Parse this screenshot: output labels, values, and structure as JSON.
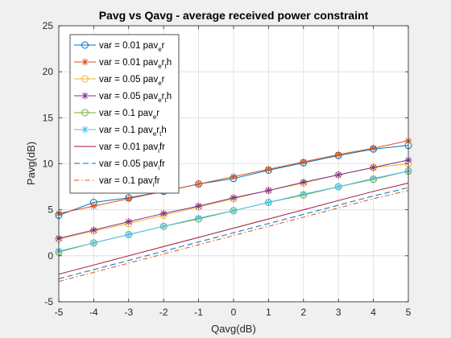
{
  "chart_data": {
    "type": "line",
    "title": "Pavg vs Qavg - average received power constraint",
    "xlabel": "Qavg(dB)",
    "ylabel": "Pavg(dB)",
    "xlim": [
      -5,
      5
    ],
    "ylim": [
      -5,
      25
    ],
    "xticks": [
      -5,
      -4,
      -3,
      -2,
      -1,
      0,
      1,
      2,
      3,
      4,
      5
    ],
    "yticks": [
      -5,
      0,
      5,
      10,
      15,
      20,
      25
    ],
    "grid": true,
    "legend_position": "top-left",
    "x": [
      -5,
      -4,
      -3,
      -2,
      -1,
      0,
      1,
      2,
      3,
      4,
      5
    ],
    "series": [
      {
        "legend": [
          {
            "t": "var = 0.01 pav"
          },
          {
            "t": "e",
            "sub": true
          },
          {
            "t": "r"
          }
        ],
        "color": "#0072BD",
        "line": "solid",
        "marker": "circle",
        "values": [
          4.4,
          5.8,
          6.3,
          7.0,
          7.8,
          8.4,
          9.3,
          10.1,
          10.9,
          11.6,
          12.0
        ]
      },
      {
        "legend": [
          {
            "t": "var = 0.01 pav"
          },
          {
            "t": "e",
            "sub": true
          },
          {
            "t": "r"
          },
          {
            "t": "t",
            "sub": true
          },
          {
            "t": "h"
          }
        ],
        "color": "#D95319",
        "line": "solid",
        "marker": "asterisk",
        "values": [
          4.6,
          5.4,
          6.2,
          7.0,
          7.8,
          8.6,
          9.4,
          10.2,
          11.0,
          11.7,
          12.5
        ]
      },
      {
        "legend": [
          {
            "t": "var = 0.05 pav"
          },
          {
            "t": "e",
            "sub": true
          },
          {
            "t": "r"
          }
        ],
        "color": "#EDB120",
        "line": "solid",
        "marker": "circle",
        "values": [
          1.8,
          2.7,
          3.5,
          4.4,
          5.3,
          6.2,
          7.1,
          7.9,
          8.8,
          9.6,
          10.0
        ]
      },
      {
        "legend": [
          {
            "t": "var = 0.05 pav"
          },
          {
            "t": "e",
            "sub": true
          },
          {
            "t": "r"
          },
          {
            "t": "t",
            "sub": true
          },
          {
            "t": "h"
          }
        ],
        "color": "#7E2F8E",
        "line": "solid",
        "marker": "asterisk",
        "values": [
          1.9,
          2.8,
          3.7,
          4.6,
          5.4,
          6.3,
          7.1,
          8.0,
          8.8,
          9.6,
          10.4
        ]
      },
      {
        "legend": [
          {
            "t": "var = 0.1 pav"
          },
          {
            "t": "e",
            "sub": true
          },
          {
            "t": "r"
          }
        ],
        "color": "#77AC30",
        "line": "solid",
        "marker": "circle",
        "values": [
          0.4,
          1.4,
          2.3,
          3.2,
          4.0,
          4.9,
          5.8,
          6.6,
          7.5,
          8.3,
          9.2
        ]
      },
      {
        "legend": [
          {
            "t": "var = 0.1 pav"
          },
          {
            "t": "e",
            "sub": true
          },
          {
            "t": "r"
          },
          {
            "t": "t",
            "sub": true
          },
          {
            "t": "h"
          }
        ],
        "color": "#4DBEEE",
        "line": "solid",
        "marker": "asterisk",
        "values": [
          0.5,
          1.4,
          2.3,
          3.2,
          4.1,
          4.9,
          5.8,
          6.7,
          7.5,
          8.4,
          9.2
        ]
      },
      {
        "legend": [
          {
            "t": "var = 0.01 pav"
          },
          {
            "t": "i",
            "sub": true
          },
          {
            "t": "fr"
          }
        ],
        "color": "#A2142F",
        "line": "solid",
        "marker": "none",
        "values": [
          -2.0,
          -1.0,
          0.0,
          1.0,
          2.0,
          3.0,
          4.0,
          5.0,
          6.0,
          7.0,
          7.9
        ]
      },
      {
        "legend": [
          {
            "t": "var = 0.05 pav"
          },
          {
            "t": "i",
            "sub": true
          },
          {
            "t": "fr"
          }
        ],
        "color": "#0072BD",
        "line": "dashed",
        "marker": "none",
        "values": [
          -2.5,
          -1.5,
          -0.5,
          0.5,
          1.5,
          2.5,
          3.5,
          4.5,
          5.5,
          6.5,
          7.4
        ]
      },
      {
        "legend": [
          {
            "t": "var = 0.1 pav"
          },
          {
            "t": "i",
            "sub": true
          },
          {
            "t": "fr"
          }
        ],
        "color": "#D95319",
        "line": "dashdot",
        "marker": "none",
        "values": [
          -2.8,
          -1.8,
          -0.8,
          0.2,
          1.2,
          2.2,
          3.2,
          4.2,
          5.2,
          6.2,
          7.1
        ]
      }
    ]
  }
}
